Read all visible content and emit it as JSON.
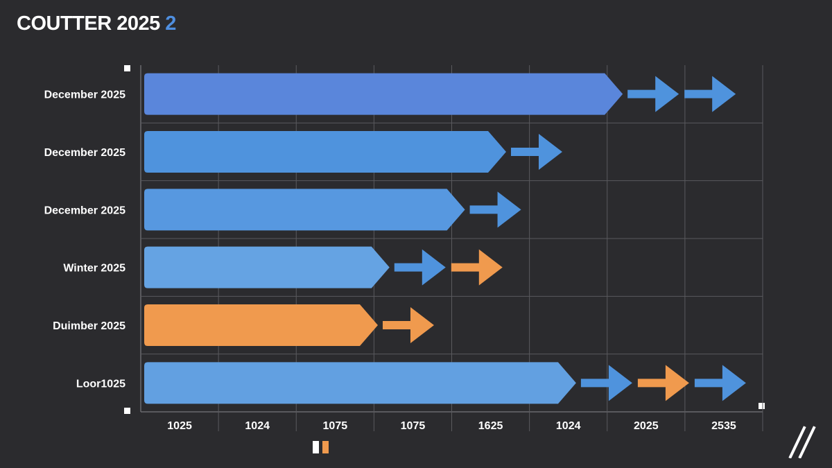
{
  "title": {
    "text": "COUTTER 2025 2",
    "accent": "2"
  },
  "chart_data": {
    "type": "bar",
    "orientation": "horizontal",
    "categories": [
      "December 2025",
      "December 2025",
      "December 2025",
      "Winter 2025",
      "Duimber 2025",
      "Loor1025"
    ],
    "bars": [
      {
        "category": "December 2025",
        "value": 6.2,
        "color": "#5a86db",
        "arrows": [
          {
            "type": "blue"
          },
          {
            "type": "blue"
          }
        ]
      },
      {
        "category": "December 2025",
        "value": 4.7,
        "color": "#4f93dd",
        "arrows": [
          {
            "type": "blue"
          }
        ]
      },
      {
        "category": "December 2025",
        "value": 4.17,
        "color": "#5798e0",
        "arrows": [
          {
            "type": "blue"
          }
        ]
      },
      {
        "category": "Winter 2025",
        "value": 3.2,
        "color": "#65a3e3",
        "arrows": [
          {
            "type": "blue"
          },
          {
            "type": "orange"
          }
        ]
      },
      {
        "category": "Duimber 2025",
        "value": 3.05,
        "color": "#f09a4e",
        "arrows": [
          {
            "type": "orange"
          }
        ]
      },
      {
        "category": "Loor1025",
        "value": 5.6,
        "color": "#62a0e1",
        "arrows": [
          {
            "type": "blue"
          },
          {
            "type": "orange"
          },
          {
            "type": "blue"
          }
        ]
      }
    ],
    "x_tick_labels": [
      "1025",
      "1024",
      "1075",
      "1075",
      "1625",
      "1024",
      "2025",
      "2535"
    ],
    "xlim": [
      0,
      8
    ],
    "grid": true,
    "colors": {
      "background": "#2b2b2e",
      "grid": "#5a5a5e",
      "arrow_blue": "#4f93dd",
      "arrow_orange": "#f09a4e",
      "text": "#ffffff"
    }
  },
  "legend": {
    "swatches": [
      {
        "color": "#ffffff"
      },
      {
        "color": "#f09a4e"
      }
    ]
  }
}
